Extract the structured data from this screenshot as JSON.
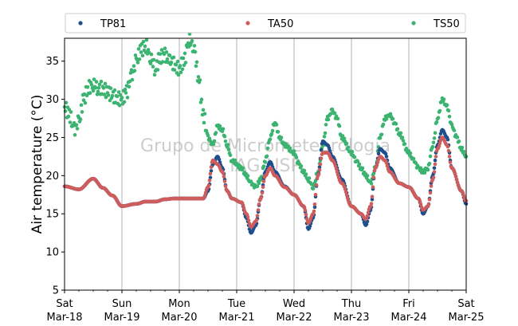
{
  "chart_data": {
    "type": "scatter",
    "ylabel": "Air temperature (°C)",
    "ylim": [
      5,
      38
    ],
    "yticks": [
      5,
      10,
      15,
      20,
      25,
      30,
      35
    ],
    "xlim": [
      "2023-03-18 00:00",
      "2023-03-25 00:00"
    ],
    "xticks": [
      {
        "day": "Sat",
        "date": "Mar-18"
      },
      {
        "day": "Sun",
        "date": "Mar-19"
      },
      {
        "day": "Mon",
        "date": "Mar-20"
      },
      {
        "day": "Tue",
        "date": "Mar-21"
      },
      {
        "day": "Wed",
        "date": "Mar-22"
      },
      {
        "day": "Thu",
        "date": "Mar-23"
      },
      {
        "day": "Fri",
        "date": "Mar-24"
      },
      {
        "day": "Sat",
        "date": "Mar-25"
      }
    ],
    "grid": "vertical",
    "legend_position": "top",
    "watermark": [
      "Grupo de Micrometeorologia",
      "IAG-USP"
    ],
    "series": [
      {
        "name": "TP81",
        "color": "#1f4e8c",
        "points": [
          [
            "03-18 00:00",
            18.6
          ],
          [
            "03-18 06:00",
            18.2
          ],
          [
            "03-18 12:00",
            19.6
          ],
          [
            "03-18 16:00",
            18.4
          ],
          [
            "03-18 20:00",
            17.4
          ],
          [
            "03-19 00:00",
            16.0
          ],
          [
            "03-19 06:00",
            16.3
          ],
          [
            "03-19 10:00",
            16.6
          ],
          [
            "03-19 14:00",
            16.6
          ],
          [
            "03-19 18:00",
            16.9
          ],
          [
            "03-19 22:00",
            17.0
          ],
          [
            "03-20 02:00",
            17.0
          ],
          [
            "03-20 06:00",
            17.0
          ],
          [
            "03-20 10:00",
            17.0
          ],
          [
            "03-20 12:00",
            18.0
          ],
          [
            "03-20 14:00",
            21.5
          ],
          [
            "03-20 16:00",
            22.5
          ],
          [
            "03-20 18:00",
            21.0
          ],
          [
            "03-20 20:00",
            18.0
          ],
          [
            "03-20 22:00",
            17.0
          ],
          [
            "03-21 02:00",
            16.5
          ],
          [
            "03-21 04:00",
            14.5
          ],
          [
            "03-21 06:00",
            12.5
          ],
          [
            "03-21 08:00",
            13.5
          ],
          [
            "03-21 10:00",
            17.0
          ],
          [
            "03-21 12:00",
            20.5
          ],
          [
            "03-21 14:00",
            21.8
          ],
          [
            "03-21 16:00",
            20.5
          ],
          [
            "03-21 20:00",
            18.6
          ],
          [
            "03-22 00:00",
            17.5
          ],
          [
            "03-22 04:00",
            16.0
          ],
          [
            "03-22 06:00",
            13.0
          ],
          [
            "03-22 08:00",
            14.5
          ],
          [
            "03-22 10:00",
            20.0
          ],
          [
            "03-22 12:00",
            24.5
          ],
          [
            "03-22 14:00",
            24.0
          ],
          [
            "03-22 16:00",
            22.5
          ],
          [
            "03-22 20:00",
            19.5
          ],
          [
            "03-23 00:00",
            16.0
          ],
          [
            "03-23 04:00",
            15.0
          ],
          [
            "03-23 06:00",
            13.5
          ],
          [
            "03-23 08:00",
            15.5
          ],
          [
            "03-23 10:00",
            21.0
          ],
          [
            "03-23 12:00",
            23.5
          ],
          [
            "03-23 14:00",
            23.0
          ],
          [
            "03-23 16:00",
            21.0
          ],
          [
            "03-23 20:00",
            19.0
          ],
          [
            "03-24 00:00",
            18.5
          ],
          [
            "03-24 04:00",
            17.0
          ],
          [
            "03-24 06:00",
            15.0
          ],
          [
            "03-24 08:00",
            16.0
          ],
          [
            "03-24 10:00",
            20.0
          ],
          [
            "03-24 12:00",
            24.0
          ],
          [
            "03-24 14:00",
            26.0
          ],
          [
            "03-24 16:00",
            25.0
          ],
          [
            "03-24 18:00",
            21.0
          ],
          [
            "03-24 22:00",
            18.0
          ],
          [
            "03-25 00:00",
            16.3
          ]
        ]
      },
      {
        "name": "TA50",
        "color": "#cd5c5c",
        "points": [
          [
            "03-18 00:00",
            18.6
          ],
          [
            "03-18 06:00",
            18.2
          ],
          [
            "03-18 12:00",
            19.6
          ],
          [
            "03-18 16:00",
            18.4
          ],
          [
            "03-18 20:00",
            17.4
          ],
          [
            "03-19 00:00",
            16.0
          ],
          [
            "03-19 06:00",
            16.3
          ],
          [
            "03-19 10:00",
            16.6
          ],
          [
            "03-19 14:00",
            16.6
          ],
          [
            "03-19 18:00",
            16.9
          ],
          [
            "03-19 22:00",
            17.0
          ],
          [
            "03-20 02:00",
            17.0
          ],
          [
            "03-20 06:00",
            17.0
          ],
          [
            "03-20 10:00",
            17.0
          ],
          [
            "03-20 12:00",
            18.5
          ],
          [
            "03-20 14:00",
            22.0
          ],
          [
            "03-20 16:00",
            21.5
          ],
          [
            "03-20 18:00",
            20.5
          ],
          [
            "03-20 20:00",
            18.0
          ],
          [
            "03-20 22:00",
            17.0
          ],
          [
            "03-21 02:00",
            16.5
          ],
          [
            "03-21 04:00",
            15.0
          ],
          [
            "03-21 06:00",
            13.3
          ],
          [
            "03-21 08:00",
            14.0
          ],
          [
            "03-21 10:00",
            17.0
          ],
          [
            "03-21 12:00",
            20.0
          ],
          [
            "03-21 14:00",
            21.0
          ],
          [
            "03-21 16:00",
            20.0
          ],
          [
            "03-21 20:00",
            18.5
          ],
          [
            "03-22 00:00",
            17.5
          ],
          [
            "03-22 04:00",
            16.0
          ],
          [
            "03-22 06:00",
            13.8
          ],
          [
            "03-22 08:00",
            15.0
          ],
          [
            "03-22 10:00",
            20.0
          ],
          [
            "03-22 12:00",
            23.0
          ],
          [
            "03-22 14:00",
            23.0
          ],
          [
            "03-22 16:00",
            22.0
          ],
          [
            "03-22 20:00",
            19.0
          ],
          [
            "03-23 00:00",
            16.0
          ],
          [
            "03-23 04:00",
            15.0
          ],
          [
            "03-23 06:00",
            14.3
          ],
          [
            "03-23 08:00",
            16.0
          ],
          [
            "03-23 10:00",
            21.0
          ],
          [
            "03-23 12:00",
            22.5
          ],
          [
            "03-23 14:00",
            22.0
          ],
          [
            "03-23 16:00",
            20.5
          ],
          [
            "03-23 20:00",
            19.0
          ],
          [
            "03-24 00:00",
            18.5
          ],
          [
            "03-24 04:00",
            17.0
          ],
          [
            "03-24 06:00",
            15.5
          ],
          [
            "03-24 08:00",
            16.0
          ],
          [
            "03-24 10:00",
            19.5
          ],
          [
            "03-24 12:00",
            23.5
          ],
          [
            "03-24 14:00",
            25.0
          ],
          [
            "03-24 16:00",
            24.0
          ],
          [
            "03-24 18:00",
            21.0
          ],
          [
            "03-24 22:00",
            18.0
          ],
          [
            "03-25 00:00",
            16.7
          ]
        ]
      },
      {
        "name": "TS50",
        "color": "#3cb371",
        "points": [
          [
            "03-18 00:00",
            29.0
          ],
          [
            "03-18 02:00",
            28.0
          ],
          [
            "03-18 04:00",
            26.0
          ],
          [
            "03-18 06:00",
            27.0
          ],
          [
            "03-18 08:00",
            30.0
          ],
          [
            "03-18 10:00",
            31.5
          ],
          [
            "03-18 12:00",
            32.0
          ],
          [
            "03-18 14:00",
            31.5
          ],
          [
            "03-19 00:00",
            30.0
          ],
          [
            "03-19 02:00",
            31.0
          ],
          [
            "03-19 04:00",
            33.0
          ],
          [
            "03-19 06:00",
            35.0
          ],
          [
            "03-19 08:00",
            36.5
          ],
          [
            "03-19 10:00",
            37.0
          ],
          [
            "03-19 12:00",
            35.5
          ],
          [
            "03-19 14:00",
            34.0
          ],
          [
            "03-19 16:00",
            35.5
          ],
          [
            "03-19 18:00",
            35.8
          ],
          [
            "03-19 20:00",
            35.0
          ],
          [
            "03-20 00:00",
            34.0
          ],
          [
            "03-20 02:00",
            35.0
          ],
          [
            "03-20 04:00",
            37.8
          ],
          [
            "03-20 06:00",
            37.0
          ],
          [
            "03-20 08:00",
            33.0
          ],
          [
            "03-20 10:00",
            28.0
          ],
          [
            "03-20 12:00",
            25.0
          ],
          [
            "03-20 14:00",
            24.0
          ],
          [
            "03-20 16:00",
            26.5
          ],
          [
            "03-20 18:00",
            26.0
          ],
          [
            "03-20 20:00",
            24.0
          ],
          [
            "03-20 22:00",
            22.0
          ],
          [
            "03-21 02:00",
            21.0
          ],
          [
            "03-21 04:00",
            20.0
          ],
          [
            "03-21 06:00",
            19.0
          ],
          [
            "03-21 08:00",
            18.5
          ],
          [
            "03-21 10:00",
            19.5
          ],
          [
            "03-21 12:00",
            22.0
          ],
          [
            "03-21 14:00",
            25.0
          ],
          [
            "03-21 16:00",
            27.0
          ],
          [
            "03-21 18:00",
            25.0
          ],
          [
            "03-21 20:00",
            24.0
          ],
          [
            "03-22 00:00",
            23.0
          ],
          [
            "03-22 02:00",
            21.5
          ],
          [
            "03-22 04:00",
            20.5
          ],
          [
            "03-22 06:00",
            19.5
          ],
          [
            "03-22 08:00",
            18.5
          ],
          [
            "03-22 10:00",
            20.5
          ],
          [
            "03-22 12:00",
            24.0
          ],
          [
            "03-22 14:00",
            27.5
          ],
          [
            "03-22 16:00",
            28.5
          ],
          [
            "03-22 18:00",
            27.5
          ],
          [
            "03-22 20:00",
            25.0
          ],
          [
            "03-23 00:00",
            23.0
          ],
          [
            "03-23 02:00",
            22.0
          ],
          [
            "03-23 04:00",
            21.0
          ],
          [
            "03-23 06:00",
            20.0
          ],
          [
            "03-23 08:00",
            19.0
          ],
          [
            "03-23 10:00",
            21.0
          ],
          [
            "03-23 12:00",
            25.0
          ],
          [
            "03-23 14:00",
            27.5
          ],
          [
            "03-23 16:00",
            28.0
          ],
          [
            "03-23 18:00",
            27.0
          ],
          [
            "03-23 20:00",
            25.5
          ],
          [
            "03-24 00:00",
            23.0
          ],
          [
            "03-24 02:00",
            22.0
          ],
          [
            "03-24 04:00",
            21.0
          ],
          [
            "03-24 06:00",
            20.5
          ],
          [
            "03-24 08:00",
            21.0
          ],
          [
            "03-24 10:00",
            24.0
          ],
          [
            "03-24 12:00",
            27.5
          ],
          [
            "03-24 14:00",
            30.0
          ],
          [
            "03-24 16:00",
            29.0
          ],
          [
            "03-24 18:00",
            26.5
          ],
          [
            "03-24 20:00",
            25.0
          ],
          [
            "03-24 22:00",
            23.5
          ],
          [
            "03-25 00:00",
            22.5
          ]
        ]
      }
    ]
  }
}
